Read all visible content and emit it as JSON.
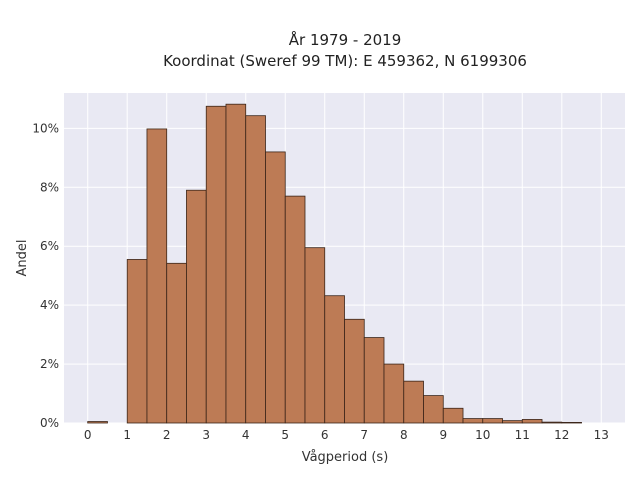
{
  "chart_data": {
    "type": "bar",
    "title": "År 1979 - 2019",
    "subtitle": "Koordinat (Sweref 99 TM): E 459362, N 6199306",
    "xlabel": "Vågperiod (s)",
    "ylabel": "Andel",
    "bin_width": 0.5,
    "bin_starts": [
      0,
      0.5,
      1,
      1.5,
      2,
      2.5,
      3,
      3.5,
      4,
      4.5,
      5,
      5.5,
      6,
      6.5,
      7,
      7.5,
      8,
      8.5,
      9,
      9.5,
      10,
      10.5,
      11,
      11.5,
      12,
      12.5
    ],
    "values": [
      0.05,
      0,
      5.55,
      9.98,
      5.42,
      7.9,
      10.75,
      10.82,
      10.43,
      9.2,
      7.7,
      5.95,
      4.32,
      3.52,
      2.9,
      2.0,
      1.42,
      0.93,
      0.5,
      0.15,
      0.15,
      0.08,
      0.12,
      0.03,
      0.02,
      0
    ],
    "xlim": [
      -0.6,
      13.6
    ],
    "ylim": [
      0,
      11.2
    ],
    "xticks": [
      0,
      1,
      2,
      3,
      4,
      5,
      6,
      7,
      8,
      9,
      10,
      11,
      12,
      13
    ],
    "yticks": [
      0,
      2,
      4,
      6,
      8,
      10
    ],
    "ytick_suffix": "%",
    "bar_color": "#bd7b55",
    "bar_edge_color": "#3a2418",
    "plot_background": "#e9e9f3",
    "grid_color": "#ffffff",
    "grid": true
  }
}
